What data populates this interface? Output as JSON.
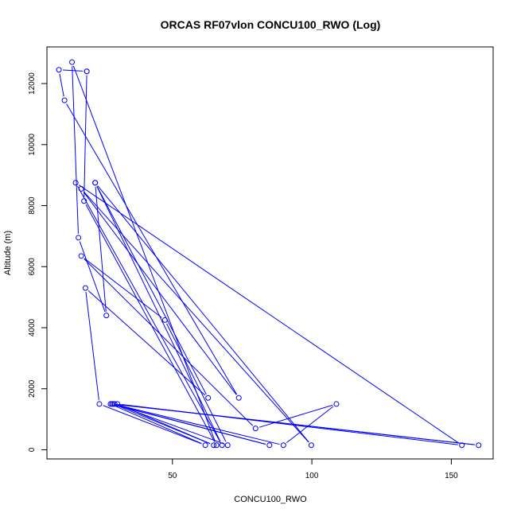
{
  "chart_data": {
    "type": "line",
    "title": "ORCAS RF07vlon CONCU100_RWO (Log)",
    "xlabel": "CONCU100_RWO",
    "ylabel": "Altitude (m)",
    "xlim": [
      5,
      165
    ],
    "ylim": [
      -300,
      13200
    ],
    "xticks": [
      50,
      100,
      150
    ],
    "yticks": [
      0,
      2000,
      4000,
      6000,
      8000,
      10000,
      12000
    ],
    "grid": false,
    "series_color": "#0000ff",
    "series": [
      {
        "marker": "open-circle",
        "points": [
          {
            "x": 19.3,
            "y": 12400
          },
          {
            "x": 18.3,
            "y": 8150
          },
          {
            "x": 65.8,
            "y": 150
          },
          {
            "x": 14.0,
            "y": 12700
          },
          {
            "x": 16.3,
            "y": 6950
          },
          {
            "x": 26.3,
            "y": 4400
          },
          {
            "x": 22.3,
            "y": 8750
          },
          {
            "x": 67.8,
            "y": 150
          },
          {
            "x": 15.3,
            "y": 8750
          },
          {
            "x": 153.8,
            "y": 150
          },
          {
            "x": 30.3,
            "y": 1500
          },
          {
            "x": 64.8,
            "y": 150
          },
          {
            "x": 28.8,
            "y": 1500
          },
          {
            "x": 89.8,
            "y": 150
          },
          {
            "x": 108.8,
            "y": 1500
          },
          {
            "x": 79.8,
            "y": 700
          },
          {
            "x": 17.3,
            "y": 6350
          },
          {
            "x": 47.3,
            "y": 4250
          },
          {
            "x": 69.8,
            "y": 150
          },
          {
            "x": 29.3,
            "y": 1500
          },
          {
            "x": 159.8,
            "y": 150
          },
          {
            "x": 28.3,
            "y": 1500
          },
          {
            "x": 84.8,
            "y": 150
          },
          {
            "x": 27.8,
            "y": 1500
          },
          {
            "x": 61.8,
            "y": 150
          },
          {
            "x": 23.8,
            "y": 1500
          },
          {
            "x": 18.8,
            "y": 5300
          },
          {
            "x": 62.8,
            "y": 1700
          },
          {
            "x": 22.3,
            "y": 8750
          },
          {
            "x": 99.8,
            "y": 150
          },
          {
            "x": 17.3,
            "y": 8550
          },
          {
            "x": 73.8,
            "y": 1700
          },
          {
            "x": 11.3,
            "y": 11450
          },
          {
            "x": 9.3,
            "y": 12450
          },
          {
            "x": 19.3,
            "y": 12400
          }
        ]
      }
    ]
  }
}
